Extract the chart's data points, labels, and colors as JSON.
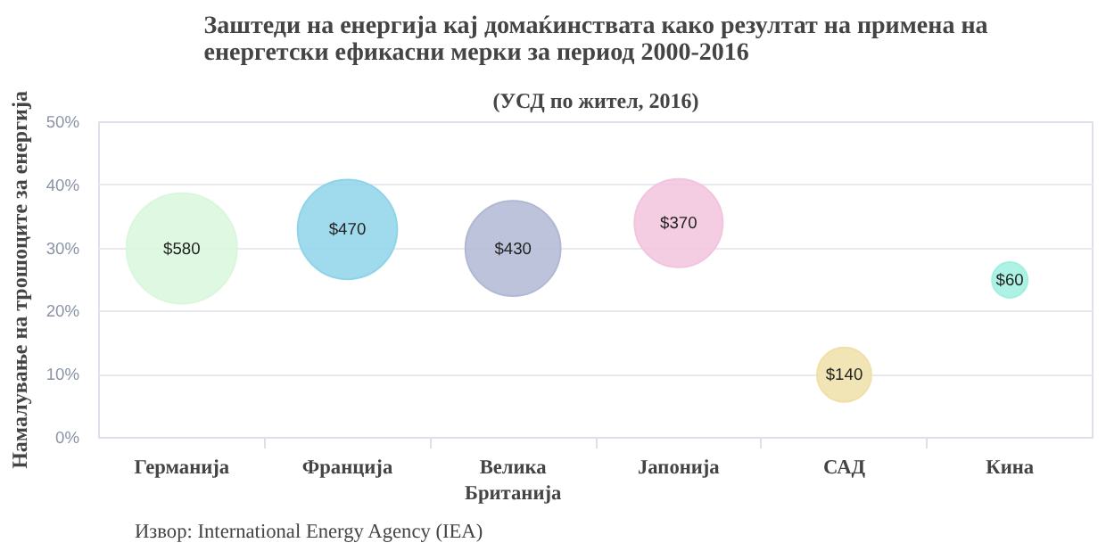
{
  "chart_data": {
    "type": "bubble",
    "title": "Заштеди на енергија кај домаќинствата како резултат на примена на\nенергетски ефикасни мерки за период 2000-2016",
    "subtitle": "(УСД по жител, 2016)",
    "ylabel": "Намалување на трошоците за енергија",
    "categories": [
      "Германија",
      "Франција",
      "Велика\nБританија",
      "Јапонија",
      "САД",
      "Кина"
    ],
    "values": [
      30,
      33,
      30,
      34,
      10,
      25
    ],
    "sizes": [
      580,
      470,
      430,
      370,
      140,
      60
    ],
    "value_labels": [
      "$580",
      "$470",
      "$430",
      "$370",
      "$140",
      "$60"
    ],
    "colors": [
      "#d9f7dc",
      "#8fd4ea",
      "#b0b8d4",
      "#f2c4de",
      "#f0e0a8",
      "#a0f0e0"
    ],
    "ylim": [
      0,
      50
    ],
    "yticks": [
      {
        "value": 0,
        "label": "0%"
      },
      {
        "value": 10,
        "label": "10%"
      },
      {
        "value": 20,
        "label": "20%"
      },
      {
        "value": 30,
        "label": "30%"
      },
      {
        "value": 40,
        "label": "40%"
      },
      {
        "value": 50,
        "label": "50%"
      }
    ],
    "grid": "y",
    "marker": "circle",
    "annotations": [
      "Извор: International Energy Agency (IEA)"
    ]
  }
}
